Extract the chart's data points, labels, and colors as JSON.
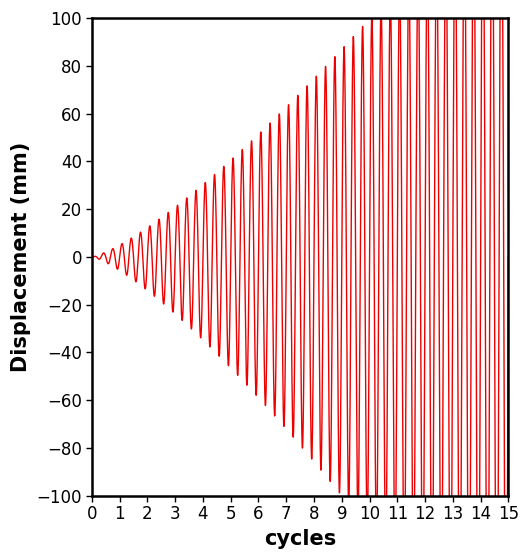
{
  "title": "",
  "xlabel": "cycles",
  "ylabel": "Displacement (mm)",
  "xlim": [
    0,
    15
  ],
  "ylim": [
    -100,
    100
  ],
  "xticks": [
    0,
    1,
    2,
    3,
    4,
    5,
    6,
    7,
    8,
    9,
    10,
    11,
    12,
    13,
    14,
    15
  ],
  "yticks": [
    -100,
    -80,
    -60,
    -40,
    -20,
    0,
    20,
    40,
    60,
    80,
    100
  ],
  "line_color": "#EE0000",
  "line_width": 1.0,
  "background_color": "#ffffff",
  "xlabel_fontsize": 15,
  "ylabel_fontsize": 15,
  "tick_fontsize": 12,
  "num_points": 8000,
  "frequency": 3.0,
  "amplitude_scale": 5.0,
  "amplitude_exponent": 1.3,
  "neg_boost": 1.15
}
